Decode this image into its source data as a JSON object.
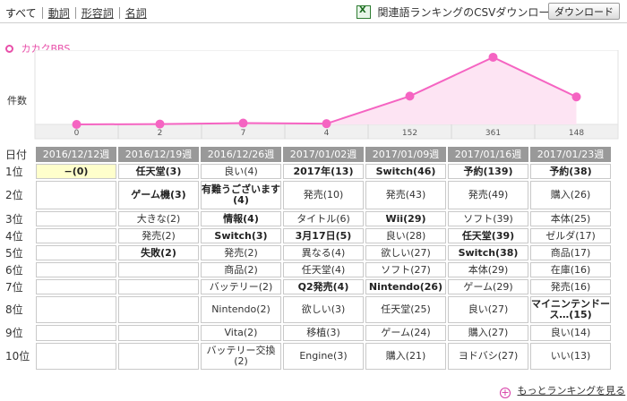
{
  "tabs": [
    {
      "label": "すべて",
      "active": true
    },
    {
      "label": "動詞",
      "active": false
    },
    {
      "label": "形容詞",
      "active": false
    },
    {
      "label": "名詞",
      "active": false
    }
  ],
  "csv": {
    "icon": "excel-file-icon",
    "icon_glyph": "X",
    "text": "関連語ランキングのCSVダウンロード",
    "button_label": "ダウンロード"
  },
  "bbs_title": "カカクBBS",
  "count_label": "件数",
  "chart_data": {
    "type": "area",
    "categories": [
      "2016/12/12週",
      "2016/12/19週",
      "2016/12/26週",
      "2017/01/02週",
      "2017/01/09週",
      "2017/01/16週",
      "2017/01/23週"
    ],
    "values": [
      0,
      2,
      7,
      4,
      152,
      361,
      148
    ],
    "ylabel": "件数",
    "ylim": [
      0,
      380
    ],
    "color": "#f564c2",
    "fill": "#fde4f3"
  },
  "table": {
    "corner": "日付",
    "weeks": [
      "2016/12/12週",
      "2016/12/19週",
      "2016/12/26週",
      "2017/01/02週",
      "2017/01/09週",
      "2017/01/16週",
      "2017/01/23週"
    ],
    "rows": [
      {
        "rank": "1位",
        "cells": [
          {
            "t": "−(0)",
            "b": true,
            "hl": true
          },
          {
            "t": "任天堂(3)",
            "b": true
          },
          {
            "t": "良い(4)"
          },
          {
            "t": "2017年(13)",
            "b": true
          },
          {
            "t": "Switch(46)",
            "b": true
          },
          {
            "t": "予約(139)",
            "b": true
          },
          {
            "t": "予約(38)",
            "b": true
          }
        ]
      },
      {
        "rank": "2位",
        "cells": [
          {
            "t": ""
          },
          {
            "t": "ゲーム機(3)",
            "b": true
          },
          {
            "t": "有難うございます(4)",
            "b": true
          },
          {
            "t": "発売(10)"
          },
          {
            "t": "発売(43)"
          },
          {
            "t": "発売(49)"
          },
          {
            "t": "購入(26)"
          }
        ]
      },
      {
        "rank": "3位",
        "cells": [
          {
            "t": ""
          },
          {
            "t": "大きな(2)"
          },
          {
            "t": "情報(4)",
            "b": true
          },
          {
            "t": "タイトル(6)"
          },
          {
            "t": "Wii(29)",
            "b": true
          },
          {
            "t": "ソフト(39)"
          },
          {
            "t": "本体(25)"
          }
        ]
      },
      {
        "rank": "4位",
        "cells": [
          {
            "t": ""
          },
          {
            "t": "発売(2)"
          },
          {
            "t": "Switch(3)",
            "b": true
          },
          {
            "t": "3月17日(5)",
            "b": true
          },
          {
            "t": "良い(28)"
          },
          {
            "t": "任天堂(39)",
            "b": true
          },
          {
            "t": "ゼルダ(17)"
          }
        ]
      },
      {
        "rank": "5位",
        "cells": [
          {
            "t": ""
          },
          {
            "t": "失敗(2)",
            "b": true
          },
          {
            "t": "発売(2)"
          },
          {
            "t": "異なる(4)"
          },
          {
            "t": "欲しい(27)"
          },
          {
            "t": "Switch(38)",
            "b": true
          },
          {
            "t": "商品(17)"
          }
        ]
      },
      {
        "rank": "6位",
        "cells": [
          {
            "t": ""
          },
          {
            "t": ""
          },
          {
            "t": "商品(2)"
          },
          {
            "t": "任天堂(4)"
          },
          {
            "t": "ソフト(27)"
          },
          {
            "t": "本体(29)"
          },
          {
            "t": "在庫(16)"
          }
        ]
      },
      {
        "rank": "7位",
        "cells": [
          {
            "t": ""
          },
          {
            "t": ""
          },
          {
            "t": "バッテリー(2)"
          },
          {
            "t": "Q2発売(4)",
            "b": true
          },
          {
            "t": "Nintendo(26)",
            "b": true
          },
          {
            "t": "ゲーム(29)"
          },
          {
            "t": "発売(16)"
          }
        ]
      },
      {
        "rank": "8位",
        "cells": [
          {
            "t": ""
          },
          {
            "t": ""
          },
          {
            "t": "Nintendo(2)"
          },
          {
            "t": "欲しい(3)"
          },
          {
            "t": "任天堂(25)"
          },
          {
            "t": "良い(27)"
          },
          {
            "t": "マイニンテンドース…(15)",
            "b": true
          }
        ]
      },
      {
        "rank": "9位",
        "cells": [
          {
            "t": ""
          },
          {
            "t": ""
          },
          {
            "t": "Vita(2)"
          },
          {
            "t": "移植(3)"
          },
          {
            "t": "ゲーム(24)"
          },
          {
            "t": "購入(27)"
          },
          {
            "t": "良い(14)"
          }
        ]
      },
      {
        "rank": "10位",
        "cells": [
          {
            "t": ""
          },
          {
            "t": ""
          },
          {
            "t": "バッテリー交換(2)"
          },
          {
            "t": "Engine(3)"
          },
          {
            "t": "購入(21)"
          },
          {
            "t": "ヨドバシ(27)"
          },
          {
            "t": "いい(13)"
          }
        ]
      }
    ]
  },
  "more": {
    "icon": "plus-circle-icon",
    "icon_glyph": "+",
    "label": "もっとランキングを見る"
  }
}
